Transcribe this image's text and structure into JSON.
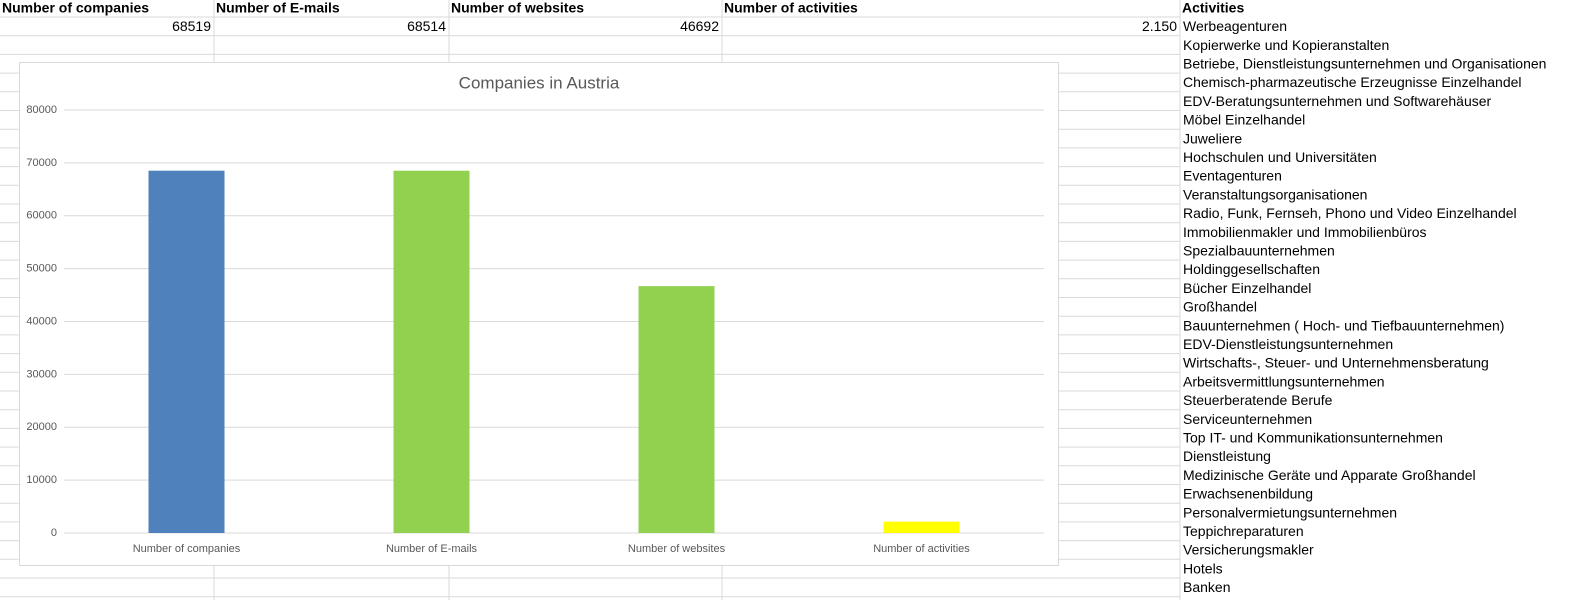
{
  "table": {
    "headers": [
      "Number of companies",
      "Number of E-mails",
      "Number of websites",
      "Number of activities",
      "Activities"
    ],
    "totals": [
      68519,
      68514,
      46692,
      "2.150"
    ],
    "activities": [
      "Werbeagenturen",
      "Kopierwerke und Kopieranstalten",
      "Betriebe, Dienstleistungsunternehmen und Organisationen",
      "Chemisch-pharmazeutische Erzeugnisse Einzelhandel",
      "EDV-Beratungsunternehmen und Softwarehäuser",
      "Möbel Einzelhandel",
      "Juweliere",
      "Hochschulen und Universitäten",
      "Eventagenturen",
      "Veranstaltungsorganisationen",
      "Radio, Funk, Fernseh, Phono und Video Einzelhandel",
      "Immobilienmakler und Immobilienbüros",
      "Spezialbauunternehmen",
      "Holdinggesellschaften",
      "Bücher Einzelhandel",
      "Großhandel",
      "Bauunternehmen ( Hoch- und Tiefbauunternehmen)",
      "EDV-Dienstleistungsunternehmen",
      "Wirtschafts-, Steuer- und Unternehmensberatung",
      "Arbeitsvermittlungsunternehmen",
      "Steuerberatende Berufe",
      "Serviceunternehmen",
      "Top IT- und Kommunikationsunternehmen",
      "Dienstleistung",
      "Medizinische Geräte und Apparate Großhandel",
      "Erwachsenenbildung",
      "Personalvermietungsunternehmen",
      "Teppichreparaturen",
      "Versicherungsmakler",
      "Hotels",
      "Banken"
    ]
  },
  "chart_data": {
    "type": "bar",
    "title": "Companies in Austria",
    "categories": [
      "Number of companies",
      "Number of E-mails",
      "Number of websites",
      "Number of activities"
    ],
    "values": [
      68519,
      68514,
      46692,
      2150
    ],
    "colors": [
      "#4f81bd",
      "#92d050",
      "#92d050",
      "#ffff00"
    ],
    "ylim": [
      0,
      80000
    ],
    "yticks": [
      0,
      10000,
      20000,
      30000,
      40000,
      50000,
      60000,
      70000,
      80000
    ],
    "grid": true
  }
}
